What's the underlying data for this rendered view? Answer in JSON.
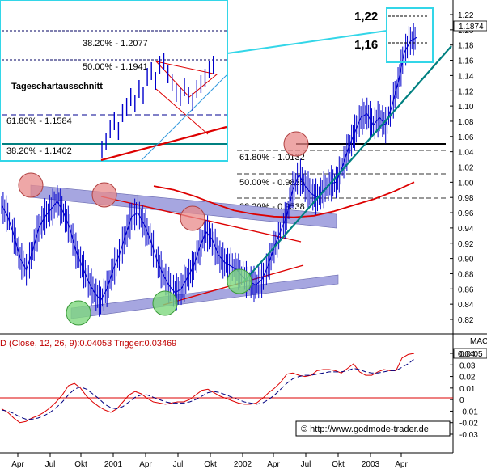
{
  "chart_data": [
    {
      "type": "line",
      "panel": "price",
      "y_ticks": [
        1.22,
        1.2,
        1.18,
        1.16,
        1.14,
        1.12,
        1.1,
        1.08,
        1.06,
        1.04,
        1.02,
        1.0,
        0.98,
        0.96,
        0.94,
        0.92,
        0.9,
        0.88,
        0.86,
        0.84,
        0.82
      ],
      "ylim": [
        0.805,
        1.225
      ],
      "current_value": "1.1874",
      "current_value_num": 1.1874,
      "annotations": {
        "upper": "1,22",
        "lower": "1,16"
      },
      "fib_levels": [
        {
          "label": "61.80% - 1.0132",
          "value": 1.0132
        },
        {
          "label": "50.00% - 0.9835",
          "value": 0.9835
        },
        {
          "label": "38.20% - 0.9538",
          "value": 0.9538
        }
      ],
      "series": [
        {
          "values": [
            0.97,
            0.955,
            0.93,
            0.9,
            0.885,
            0.91,
            0.94,
            0.955,
            0.965,
            0.975,
            0.96,
            0.94,
            0.91,
            0.89,
            0.87,
            0.855,
            0.845,
            0.86,
            0.885,
            0.905,
            0.93,
            0.955,
            0.96,
            0.945,
            0.925,
            0.9,
            0.88,
            0.865,
            0.855,
            0.86,
            0.875,
            0.89,
            0.915,
            0.935,
            0.925,
            0.905,
            0.895,
            0.89,
            0.885,
            0.875,
            0.87,
            0.865,
            0.872,
            0.89,
            0.915,
            0.935,
            0.955,
            0.99,
            1.01,
            0.995,
            0.985,
            0.98,
            0.99,
            0.998,
            1.0,
            1.02,
            1.045,
            1.065,
            1.085,
            1.09,
            1.075,
            1.085,
            1.075,
            1.1,
            1.13,
            1.17,
            1.185,
            1.19
          ]
        },
        {
          "values": [
            0.995,
            0.99,
            0.982,
            0.972,
            0.963,
            0.958,
            0.955,
            0.954,
            0.956,
            0.962,
            0.97,
            0.978,
            0.988,
            1.0
          ]
        }
      ]
    },
    {
      "type": "line",
      "panel": "macd",
      "label": "D (Close, 12, 26, 9):0.04053 Trigger:0.03469",
      "axis_title": "MAC",
      "current_value": "0.0405",
      "y_ticks": [
        0.04,
        0.03,
        0.02,
        0.01,
        0,
        -0.01,
        -0.02,
        -0.03
      ],
      "ylim": [
        -0.033,
        0.047
      ],
      "series": [
        {
          "values": [
            -0.008,
            -0.011,
            -0.016,
            -0.02,
            -0.019,
            -0.016,
            -0.014,
            -0.011,
            -0.007,
            -0.002,
            0.004,
            0.012,
            0.014,
            0.01,
            0.003,
            -0.002,
            -0.006,
            -0.009,
            -0.011,
            -0.008,
            -0.002,
            0.004,
            0.007,
            0.005,
            0.001,
            -0.002,
            -0.003,
            -0.004,
            -0.003,
            -0.002,
            -0.002,
            0.0,
            0.004,
            0.008,
            0.009,
            0.006,
            0.003,
            0.001,
            -0.001,
            -0.003,
            -0.004,
            -0.004,
            -0.003,
            0.001,
            0.006,
            0.01,
            0.015,
            0.022,
            0.023,
            0.021,
            0.02,
            0.021,
            0.025,
            0.026,
            0.026,
            0.025,
            0.023,
            0.027,
            0.031,
            0.024,
            0.021,
            0.021,
            0.024,
            0.026,
            0.025,
            0.025,
            0.036,
            0.039,
            0.04
          ]
        },
        {
          "values": [
            -0.009,
            -0.01,
            -0.012,
            -0.015,
            -0.017,
            -0.017,
            -0.016,
            -0.014,
            -0.011,
            -0.007,
            -0.002,
            0.004,
            0.009,
            0.011,
            0.009,
            0.005,
            0.001,
            -0.004,
            -0.007,
            -0.008,
            -0.006,
            -0.002,
            0.002,
            0.004,
            0.004,
            0.002,
            0.0,
            -0.002,
            -0.003,
            -0.003,
            -0.003,
            -0.002,
            0.0,
            0.003,
            0.006,
            0.007,
            0.006,
            0.004,
            0.002,
            0.0,
            -0.002,
            -0.003,
            -0.004,
            -0.003,
            0.0,
            0.004,
            0.009,
            0.014,
            0.018,
            0.02,
            0.021,
            0.021,
            0.022,
            0.023,
            0.024,
            0.024,
            0.024,
            0.025,
            0.027,
            0.026,
            0.024,
            0.023,
            0.023,
            0.024,
            0.025,
            0.025,
            0.028,
            0.031,
            0.035
          ]
        }
      ]
    }
  ],
  "x_ticks": [
    "Apr",
    "Jul",
    "Okt",
    "2001",
    "Apr",
    "Jul",
    "Okt",
    "2002",
    "Apr",
    "Jul",
    "Okt",
    "2003",
    "Apr"
  ],
  "inset": {
    "title": "Tageschartausschnitt",
    "levels": [
      {
        "label": "38.20% - 1.2077"
      },
      {
        "label": "50.00% - 1.1941"
      },
      {
        "label": "61.80% - 1.1584"
      },
      {
        "label": "38.20% - 1.1402"
      }
    ]
  },
  "copyright": "© http://www.godmode-trader.de",
  "colors": {
    "price_bars": "#0000cc",
    "moving_average": "#dd0000",
    "trend_band": "#a6a6e0",
    "uptrend_line": "#008080",
    "resistance_line": "#000000",
    "callout_box": "#33d6e8",
    "macd_line": "#dd0000",
    "trigger_line": "#000080",
    "circle_red": "#e88a8a",
    "circle_green": "#7ed87e"
  }
}
